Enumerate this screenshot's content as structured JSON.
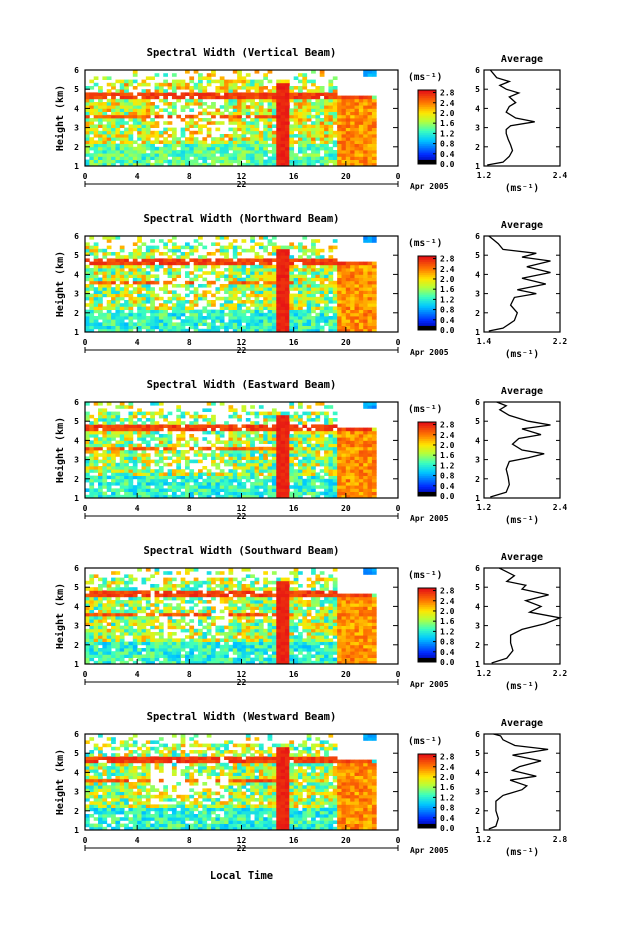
{
  "figure": {
    "xlabel": "Local Time",
    "date_label": "Apr 2005",
    "day_label": "22",
    "cbar_unit": "(ms⁻¹)",
    "avg_title": "Average",
    "avg_unit": "(ms⁻¹)"
  },
  "chart_data": [
    {
      "type": "heatmap",
      "title": "Spectral Width (Vertical Beam)",
      "ylabel": "Height (km)",
      "x_ticks": [
        "0",
        "4",
        "8",
        "12",
        "16",
        "20",
        "0"
      ],
      "y_ticks": [
        "1",
        "2",
        "3",
        "4",
        "5",
        "6"
      ],
      "xlim": [
        0,
        24
      ],
      "ylim": [
        1,
        6
      ],
      "colorbar_ticks": [
        "0.0",
        "0.4",
        "0.8",
        "1.2",
        "1.6",
        "2.0",
        "2.4",
        "2.8"
      ],
      "colorbar_range": [
        0,
        2.9
      ],
      "profile": {
        "type": "line",
        "title": "Average",
        "x_ticks": [
          "1.2",
          "2.4"
        ],
        "xlim": [
          1.2,
          2.4
        ],
        "y_ticks": [
          "1",
          "2",
          "3",
          "4",
          "5",
          "6"
        ],
        "ylim": [
          1,
          6
        ],
        "points": [
          [
            1.25,
            1.05
          ],
          [
            1.5,
            1.2
          ],
          [
            1.6,
            1.5
          ],
          [
            1.65,
            1.8
          ],
          [
            1.62,
            2.1
          ],
          [
            1.58,
            2.4
          ],
          [
            1.55,
            2.7
          ],
          [
            1.55,
            2.9
          ],
          [
            1.62,
            3.1
          ],
          [
            2.0,
            3.3
          ],
          [
            1.7,
            3.5
          ],
          [
            1.55,
            3.8
          ],
          [
            1.6,
            4.1
          ],
          [
            1.7,
            4.3
          ],
          [
            1.6,
            4.6
          ],
          [
            1.75,
            4.8
          ],
          [
            1.55,
            5.0
          ],
          [
            1.45,
            5.2
          ],
          [
            1.6,
            5.4
          ],
          [
            1.4,
            5.6
          ],
          [
            1.35,
            5.8
          ],
          [
            1.3,
            6.0
          ]
        ]
      }
    },
    {
      "type": "heatmap",
      "title": "Spectral Width (Northward Beam)",
      "ylabel": "Height (km)",
      "x_ticks": [
        "0",
        "4",
        "8",
        "12",
        "16",
        "20",
        "0"
      ],
      "y_ticks": [
        "1",
        "2",
        "3",
        "4",
        "5",
        "6"
      ],
      "xlim": [
        0,
        24
      ],
      "ylim": [
        1,
        6
      ],
      "colorbar_ticks": [
        "0.0",
        "0.4",
        "0.8",
        "1.2",
        "1.6",
        "2.0",
        "2.4",
        "2.8"
      ],
      "colorbar_range": [
        0,
        2.9
      ],
      "profile": {
        "type": "line",
        "title": "Average",
        "x_ticks": [
          "1.4",
          "2.2"
        ],
        "xlim": [
          1.4,
          2.2
        ],
        "y_ticks": [
          "1",
          "2",
          "3",
          "4",
          "5",
          "6"
        ],
        "ylim": [
          1,
          6
        ],
        "points": [
          [
            1.45,
            1.05
          ],
          [
            1.6,
            1.2
          ],
          [
            1.72,
            1.6
          ],
          [
            1.75,
            2.0
          ],
          [
            1.68,
            2.4
          ],
          [
            1.72,
            2.8
          ],
          [
            1.95,
            3.0
          ],
          [
            1.75,
            3.2
          ],
          [
            2.05,
            3.5
          ],
          [
            1.8,
            3.8
          ],
          [
            2.1,
            4.1
          ],
          [
            1.85,
            4.4
          ],
          [
            2.1,
            4.7
          ],
          [
            1.8,
            4.9
          ],
          [
            1.95,
            5.1
          ],
          [
            1.6,
            5.3
          ],
          [
            1.55,
            5.6
          ],
          [
            1.5,
            5.8
          ],
          [
            1.45,
            6.0
          ]
        ]
      }
    },
    {
      "type": "heatmap",
      "title": "Spectral Width (Eastward Beam)",
      "ylabel": "Height (km)",
      "x_ticks": [
        "0",
        "4",
        "8",
        "12",
        "16",
        "20",
        "0"
      ],
      "y_ticks": [
        "1",
        "2",
        "3",
        "4",
        "5",
        "6"
      ],
      "xlim": [
        0,
        24
      ],
      "ylim": [
        1,
        6
      ],
      "colorbar_ticks": [
        "0.0",
        "0.4",
        "0.8",
        "1.2",
        "1.6",
        "2.0",
        "2.4",
        "2.8"
      ],
      "colorbar_range": [
        0,
        2.9
      ],
      "profile": {
        "type": "line",
        "title": "Average",
        "x_ticks": [
          "1.2",
          "2.4"
        ],
        "xlim": [
          1.2,
          2.4
        ],
        "y_ticks": [
          "1",
          "2",
          "3",
          "4",
          "5",
          "6"
        ],
        "ylim": [
          1,
          6
        ],
        "points": [
          [
            1.3,
            1.05
          ],
          [
            1.55,
            1.3
          ],
          [
            1.6,
            1.7
          ],
          [
            1.58,
            2.1
          ],
          [
            1.55,
            2.5
          ],
          [
            1.6,
            2.9
          ],
          [
            1.9,
            3.1
          ],
          [
            2.15,
            3.3
          ],
          [
            1.8,
            3.5
          ],
          [
            1.65,
            3.8
          ],
          [
            1.75,
            4.1
          ],
          [
            2.1,
            4.3
          ],
          [
            1.8,
            4.6
          ],
          [
            2.25,
            4.8
          ],
          [
            1.9,
            5.0
          ],
          [
            1.6,
            5.3
          ],
          [
            1.45,
            5.6
          ],
          [
            1.55,
            5.8
          ],
          [
            1.4,
            6.0
          ]
        ]
      }
    },
    {
      "type": "heatmap",
      "title": "Spectral Width (Southward Beam)",
      "ylabel": "Height (km)",
      "x_ticks": [
        "0",
        "4",
        "8",
        "12",
        "16",
        "20",
        "0"
      ],
      "y_ticks": [
        "1",
        "2",
        "3",
        "4",
        "5",
        "6"
      ],
      "xlim": [
        0,
        24
      ],
      "ylim": [
        1,
        6
      ],
      "colorbar_ticks": [
        "0.0",
        "0.4",
        "0.8",
        "1.2",
        "1.6",
        "2.0",
        "2.4",
        "2.8"
      ],
      "colorbar_range": [
        0,
        2.9
      ],
      "profile": {
        "type": "line",
        "title": "Average",
        "x_ticks": [
          "1.2",
          "2.2"
        ],
        "xlim": [
          1.2,
          2.2
        ],
        "y_ticks": [
          "1",
          "2",
          "3",
          "4",
          "5",
          "6"
        ],
        "ylim": [
          1,
          6
        ],
        "points": [
          [
            1.3,
            1.05
          ],
          [
            1.5,
            1.3
          ],
          [
            1.58,
            1.7
          ],
          [
            1.55,
            2.1
          ],
          [
            1.55,
            2.5
          ],
          [
            1.7,
            2.8
          ],
          [
            2.0,
            3.1
          ],
          [
            2.2,
            3.4
          ],
          [
            1.8,
            3.7
          ],
          [
            1.95,
            4.0
          ],
          [
            1.75,
            4.3
          ],
          [
            2.05,
            4.6
          ],
          [
            1.7,
            4.9
          ],
          [
            1.75,
            5.1
          ],
          [
            1.5,
            5.3
          ],
          [
            1.6,
            5.6
          ],
          [
            1.45,
            5.9
          ],
          [
            1.4,
            6.0
          ]
        ]
      }
    },
    {
      "type": "heatmap",
      "title": "Spectral Width (Westward Beam)",
      "ylabel": "Height (km)",
      "x_ticks": [
        "0",
        "4",
        "8",
        "12",
        "16",
        "20",
        "0"
      ],
      "y_ticks": [
        "1",
        "2",
        "3",
        "4",
        "5",
        "6"
      ],
      "xlim": [
        0,
        24
      ],
      "ylim": [
        1,
        6
      ],
      "colorbar_ticks": [
        "0.0",
        "0.4",
        "0.8",
        "1.2",
        "1.6",
        "2.0",
        "2.4",
        "2.8"
      ],
      "colorbar_range": [
        0,
        2.9
      ],
      "profile": {
        "type": "line",
        "title": "Average",
        "x_ticks": [
          "1.2",
          "2.8"
        ],
        "xlim": [
          1.2,
          2.8
        ],
        "y_ticks": [
          "1",
          "2",
          "3",
          "4",
          "5",
          "6"
        ],
        "ylim": [
          1,
          6
        ],
        "points": [
          [
            1.3,
            1.05
          ],
          [
            1.45,
            1.2
          ],
          [
            1.5,
            1.6
          ],
          [
            1.45,
            2.0
          ],
          [
            1.45,
            2.5
          ],
          [
            1.6,
            2.8
          ],
          [
            2.0,
            3.1
          ],
          [
            2.1,
            3.3
          ],
          [
            1.75,
            3.6
          ],
          [
            2.3,
            3.8
          ],
          [
            1.8,
            4.1
          ],
          [
            1.95,
            4.3
          ],
          [
            2.4,
            4.6
          ],
          [
            1.8,
            4.9
          ],
          [
            2.55,
            5.2
          ],
          [
            1.85,
            5.4
          ],
          [
            1.6,
            5.7
          ],
          [
            1.55,
            5.9
          ],
          [
            1.4,
            6.0
          ]
        ]
      }
    }
  ]
}
